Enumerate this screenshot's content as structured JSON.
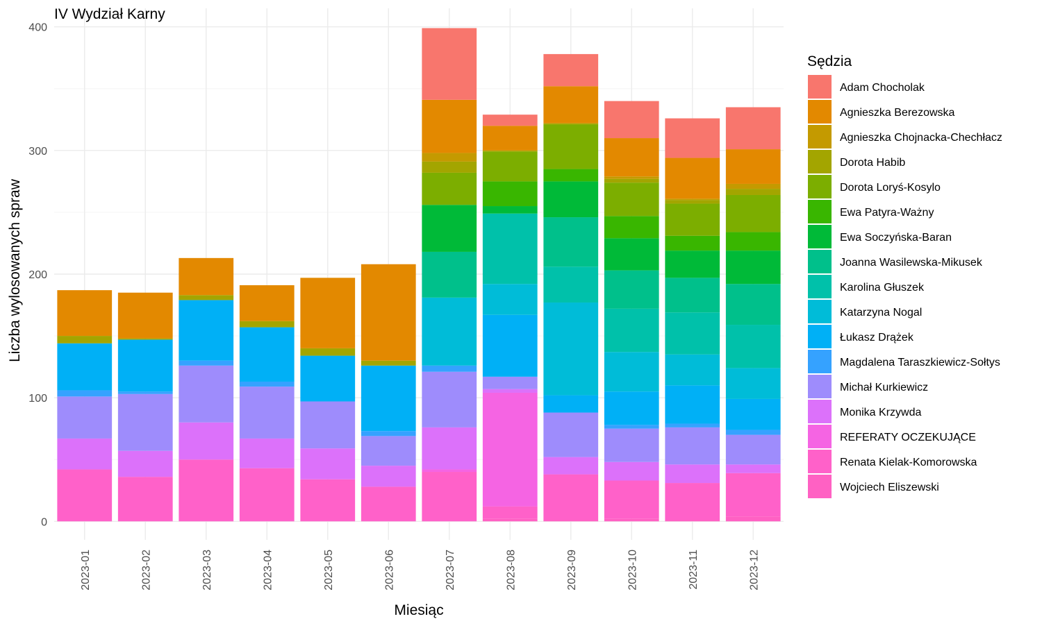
{
  "chart_data": {
    "type": "bar",
    "stacked": true,
    "title": "IV Wydział Karny",
    "xlabel": "Miesiąc",
    "ylabel": "Liczba wylosowanych spraw",
    "ylim": [
      -15,
      415
    ],
    "yticks": [
      0,
      100,
      200,
      300,
      400
    ],
    "grid": true,
    "legend_title": "Sędzia",
    "legend_position": "right",
    "categories": [
      "2023-01",
      "2023-02",
      "2023-03",
      "2023-04",
      "2023-05",
      "2023-06",
      "2023-07",
      "2023-08",
      "2023-09",
      "2023-10",
      "2023-11",
      "2023-12"
    ],
    "series": [
      {
        "name": "Wojciech Eliszewski",
        "color": "#FF61C3",
        "values": [
          0,
          0,
          0,
          0,
          0,
          0,
          0,
          2,
          1,
          2,
          1,
          4
        ]
      },
      {
        "name": "Renata Kielak-Komorowska",
        "color": "#FF61C9",
        "values": [
          42,
          36,
          50,
          43,
          34,
          28,
          40,
          10,
          37,
          31,
          30,
          35
        ]
      },
      {
        "name": "REFERATY OCZEKUJĄCE",
        "color": "#F564E3",
        "values": [
          0,
          0,
          0,
          0,
          0,
          0,
          2,
          92,
          0,
          0,
          0,
          0
        ]
      },
      {
        "name": "Monika Krzywda",
        "color": "#DC71FA",
        "values": [
          25,
          21,
          30,
          24,
          25,
          17,
          34,
          3,
          14,
          15,
          15,
          7
        ]
      },
      {
        "name": "Michał Kurkiewicz",
        "color": "#9E8CFC",
        "values": [
          34,
          46,
          46,
          42,
          38,
          24,
          45,
          10,
          36,
          27,
          30,
          24
        ]
      },
      {
        "name": "Magdalena Taraszkiewicz-Sołtys",
        "color": "#35A2FF",
        "values": [
          5,
          2,
          4,
          4,
          0,
          4,
          5,
          0,
          0,
          3,
          3,
          4
        ]
      },
      {
        "name": "Łukasz Drążek",
        "color": "#00B0F6",
        "values": [
          38,
          42,
          49,
          44,
          37,
          53,
          0,
          50,
          14,
          27,
          31,
          25
        ]
      },
      {
        "name": "Katarzyna Nogal",
        "color": "#00BCD8",
        "values": [
          0,
          0,
          0,
          0,
          0,
          0,
          55,
          25,
          75,
          32,
          25,
          25
        ]
      },
      {
        "name": "Karolina Głuszek",
        "color": "#00C1AA",
        "values": [
          0,
          0,
          0,
          0,
          0,
          0,
          0,
          57,
          29,
          35,
          34,
          35
        ]
      },
      {
        "name": "Joanna Wasilewska-Mikusek",
        "color": "#00C08B",
        "values": [
          0,
          0,
          0,
          0,
          0,
          0,
          37,
          0,
          40,
          31,
          28,
          33
        ]
      },
      {
        "name": "Ewa Soczyńska-Baran",
        "color": "#00BA38",
        "values": [
          0,
          0,
          0,
          0,
          0,
          0,
          38,
          6,
          29,
          26,
          22,
          27
        ]
      },
      {
        "name": "Ewa Patyra-Ważny",
        "color": "#39B600",
        "values": [
          0,
          0,
          0,
          0,
          0,
          0,
          0,
          20,
          10,
          18,
          12,
          15
        ]
      },
      {
        "name": "Dorota Loryś-Kosylo",
        "color": "#7CAE00",
        "values": [
          0,
          0,
          0,
          0,
          0,
          0,
          26,
          24,
          36,
          27,
          26,
          30
        ]
      },
      {
        "name": "Dorota Habib",
        "color": "#A3A500",
        "values": [
          6,
          1,
          4,
          5,
          6,
          4,
          9,
          1,
          1,
          3,
          3,
          5
        ]
      },
      {
        "name": "Agnieszka Chojnacka-Chechłacz",
        "color": "#C49A00",
        "values": [
          0,
          0,
          0,
          0,
          0,
          0,
          7,
          0,
          0,
          2,
          1,
          4
        ]
      },
      {
        "name": "Agnieszka Berezowska",
        "color": "#E38900",
        "values": [
          37,
          37,
          30,
          29,
          57,
          78,
          43,
          20,
          30,
          31,
          33,
          28
        ]
      },
      {
        "name": "Adam Chocholak",
        "color": "#F8766D",
        "values": [
          0,
          0,
          0,
          0,
          0,
          0,
          58,
          9,
          26,
          30,
          32,
          34
        ]
      }
    ],
    "legend_order": [
      "Adam Chocholak",
      "Agnieszka Berezowska",
      "Agnieszka Chojnacka-Chechłacz",
      "Dorota Habib",
      "Dorota Loryś-Kosylo",
      "Ewa Patyra-Ważny",
      "Ewa Soczyńska-Baran",
      "Joanna Wasilewska-Mikusek",
      "Karolina Głuszek",
      "Katarzyna Nogal",
      "Łukasz Drążek",
      "Magdalena Taraszkiewicz-Sołtys",
      "Michał Kurkiewicz",
      "Monika Krzywda",
      "REFERATY OCZEKUJĄCE",
      "Renata Kielak-Komorowska",
      "Wojciech Eliszewski"
    ]
  }
}
